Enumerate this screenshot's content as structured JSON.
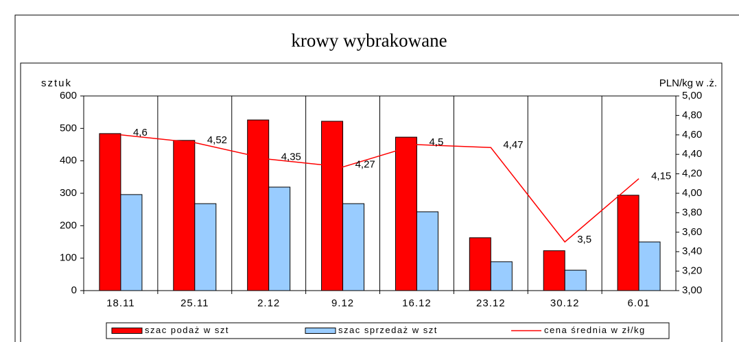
{
  "chart_data": {
    "type": "bar_line",
    "title": "krowy wybrakowane",
    "y_label": "sztuk",
    "y2_label": "PLN/kg w .ż.",
    "categories": [
      "18.11",
      "25.11",
      "2.12",
      "9.12",
      "16.12",
      "23.12",
      "30.12",
      "6.01"
    ],
    "series": [
      {
        "name": "szac podaż w szt",
        "color": "#ff0000",
        "type": "bar",
        "values": [
          484,
          463,
          526,
          522,
          473,
          163,
          123,
          294
        ]
      },
      {
        "name": "szac sprzedaż w szt",
        "color": "#99ccff",
        "type": "bar",
        "values": [
          296,
          268,
          319,
          268,
          243,
          89,
          63,
          150
        ]
      },
      {
        "name": "cena średnia w zł/kg",
        "color": "#ff0000",
        "type": "line",
        "axis": "y2",
        "values": [
          4.6,
          4.52,
          4.35,
          4.27,
          4.5,
          4.47,
          3.5,
          4.15
        ],
        "value_labels": [
          "4,6",
          "4,52",
          "4,35",
          "4,27",
          "4,5",
          "4,47",
          "3,5",
          "4,15"
        ]
      }
    ],
    "ylim": [
      0,
      600
    ],
    "yticks": [
      0,
      100,
      200,
      300,
      400,
      500,
      600
    ],
    "y2lim": [
      3,
      5
    ],
    "y2ticks": [
      {
        "value": 3,
        "label": "3,00"
      },
      {
        "value": 3.2,
        "label": "3,20"
      },
      {
        "value": 3.4,
        "label": "3,40"
      },
      {
        "value": 3.6,
        "label": "3,60"
      },
      {
        "value": 3.8,
        "label": "3,80"
      },
      {
        "value": 4,
        "label": "4,00"
      },
      {
        "value": 4.2,
        "label": "4,20"
      },
      {
        "value": 4.4,
        "label": "4,40"
      },
      {
        "value": 4.6,
        "label": "4,60"
      },
      {
        "value": 4.8,
        "label": "4,80"
      },
      {
        "value": 5,
        "label": "5,00"
      }
    ],
    "grid": "vertical",
    "legend": "bottom"
  }
}
